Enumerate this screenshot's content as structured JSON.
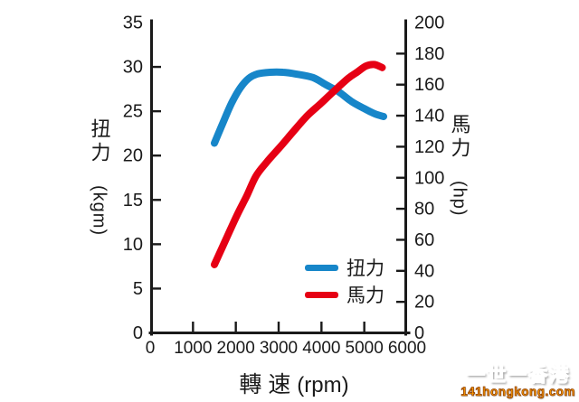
{
  "watermark": {
    "line1": "一世一香港",
    "line2": "141hongkong.com"
  },
  "legend": {
    "position": "bottom-right-inside",
    "items": [
      {
        "label": "扭力",
        "color": "#1786c9"
      },
      {
        "label": "馬力",
        "color": "#e60014"
      }
    ]
  },
  "chart_data": {
    "type": "line",
    "title": "",
    "grid": false,
    "x_axis": {
      "label_cjk": "轉 速",
      "label_unit": "(rpm)",
      "min": 0,
      "max": 6000,
      "tick_labels": [
        0,
        1000,
        2000,
        3000,
        4000,
        5000,
        6000
      ],
      "tick_marks": [
        1000,
        2000,
        3000,
        4000,
        5000
      ]
    },
    "left_axis": {
      "label_cjk": "扭力",
      "label_unit": "(kgm)",
      "min": 0,
      "max": 35,
      "tick_labels": [
        0,
        5,
        10,
        15,
        20,
        25,
        30,
        35
      ],
      "tick_marks": [
        5,
        10,
        15,
        20,
        25,
        30
      ]
    },
    "right_axis": {
      "label_cjk": "馬力",
      "label_unit": "(hp)",
      "min": 0,
      "max": 200,
      "tick_labels": [
        0,
        20,
        40,
        60,
        80,
        100,
        120,
        140,
        160,
        180,
        200
      ],
      "tick_marks": [
        20,
        40,
        60,
        80,
        100,
        120,
        140,
        160,
        180
      ]
    },
    "series": [
      {
        "name": "扭力",
        "axis": "left",
        "unit": "kgm",
        "color": "#1786c9",
        "points": [
          [
            1500,
            21.4
          ],
          [
            1700,
            23.7
          ],
          [
            1900,
            25.9
          ],
          [
            2100,
            27.6
          ],
          [
            2300,
            28.7
          ],
          [
            2500,
            29.2
          ],
          [
            2800,
            29.4
          ],
          [
            3100,
            29.4
          ],
          [
            3400,
            29.2
          ],
          [
            3800,
            28.8
          ],
          [
            4100,
            28.0
          ],
          [
            4400,
            27.2
          ],
          [
            4700,
            26.1
          ],
          [
            5000,
            25.3
          ],
          [
            5250,
            24.7
          ],
          [
            5450,
            24.4
          ]
        ]
      },
      {
        "name": "馬力",
        "axis": "right",
        "unit": "hp",
        "color": "#e60014",
        "points": [
          [
            1500,
            44
          ],
          [
            1780,
            61
          ],
          [
            2030,
            76
          ],
          [
            2250,
            88
          ],
          [
            2470,
            101
          ],
          [
            2720,
            110
          ],
          [
            3040,
            120
          ],
          [
            3350,
            130
          ],
          [
            3670,
            140
          ],
          [
            3990,
            148
          ],
          [
            4300,
            156
          ],
          [
            4620,
            164
          ],
          [
            4830,
            168
          ],
          [
            5040,
            172
          ],
          [
            5230,
            173
          ],
          [
            5420,
            171
          ]
        ]
      }
    ]
  }
}
